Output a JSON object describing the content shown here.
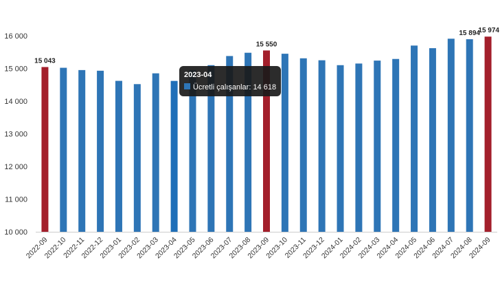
{
  "chart_data": {
    "type": "bar",
    "categories": [
      "2022-09",
      "2022-10",
      "2022-11",
      "2022-12",
      "2023-01",
      "2023-02",
      "2023-03",
      "2023-04",
      "2023-05",
      "2023-06",
      "2023-07",
      "2023-08",
      "2023-09",
      "2023-10",
      "2023-11",
      "2023-12",
      "2024-01",
      "2024-02",
      "2024-03",
      "2024-04",
      "2024-05",
      "2024-06",
      "2024-07",
      "2024-08",
      "2024-09"
    ],
    "series": [
      {
        "name": "Ücretli çalışanlar",
        "values": [
          15043,
          15020,
          14950,
          14930,
          14620,
          14520,
          14850,
          14618,
          14950,
          15100,
          15380,
          15480,
          15550,
          15450,
          15310,
          15250,
          15100,
          15150,
          15240,
          15290,
          15700,
          15620,
          15910,
          15894,
          15974
        ]
      }
    ],
    "highlighted_categories": [
      "2022-09",
      "2023-09",
      "2024-09"
    ],
    "hovered_category": "2023-04",
    "data_labels": [
      {
        "category": "2022-09",
        "text": "15 043"
      },
      {
        "category": "2023-09",
        "text": "15 550"
      },
      {
        "category": "2024-08",
        "text": "15 894"
      },
      {
        "category": "2024-09",
        "text": "15 974"
      }
    ],
    "y_ticks": [
      {
        "value": 10000,
        "label": "10 000"
      },
      {
        "value": 11000,
        "label": "11 000"
      },
      {
        "value": 12000,
        "label": "12 000"
      },
      {
        "value": 13000,
        "label": "13 000"
      },
      {
        "value": 14000,
        "label": "14 000"
      },
      {
        "value": 15000,
        "label": "15 000"
      },
      {
        "value": 16000,
        "label": "16 000"
      }
    ],
    "ylim": [
      10000,
      16000
    ],
    "grid": false,
    "legend": "none",
    "title": "",
    "xlabel": "",
    "ylabel": "",
    "tooltip": {
      "title": "2023-04",
      "series_label": "Ücretli çalışanlar",
      "value_text": "14 618"
    },
    "colors": {
      "bar": "#2e75b6",
      "bar_hover": "#1f6fb8",
      "highlight": "#a31f2b",
      "tooltip_bg": "#1a1a1a",
      "tooltip_swatch": "#2e75b6"
    }
  }
}
